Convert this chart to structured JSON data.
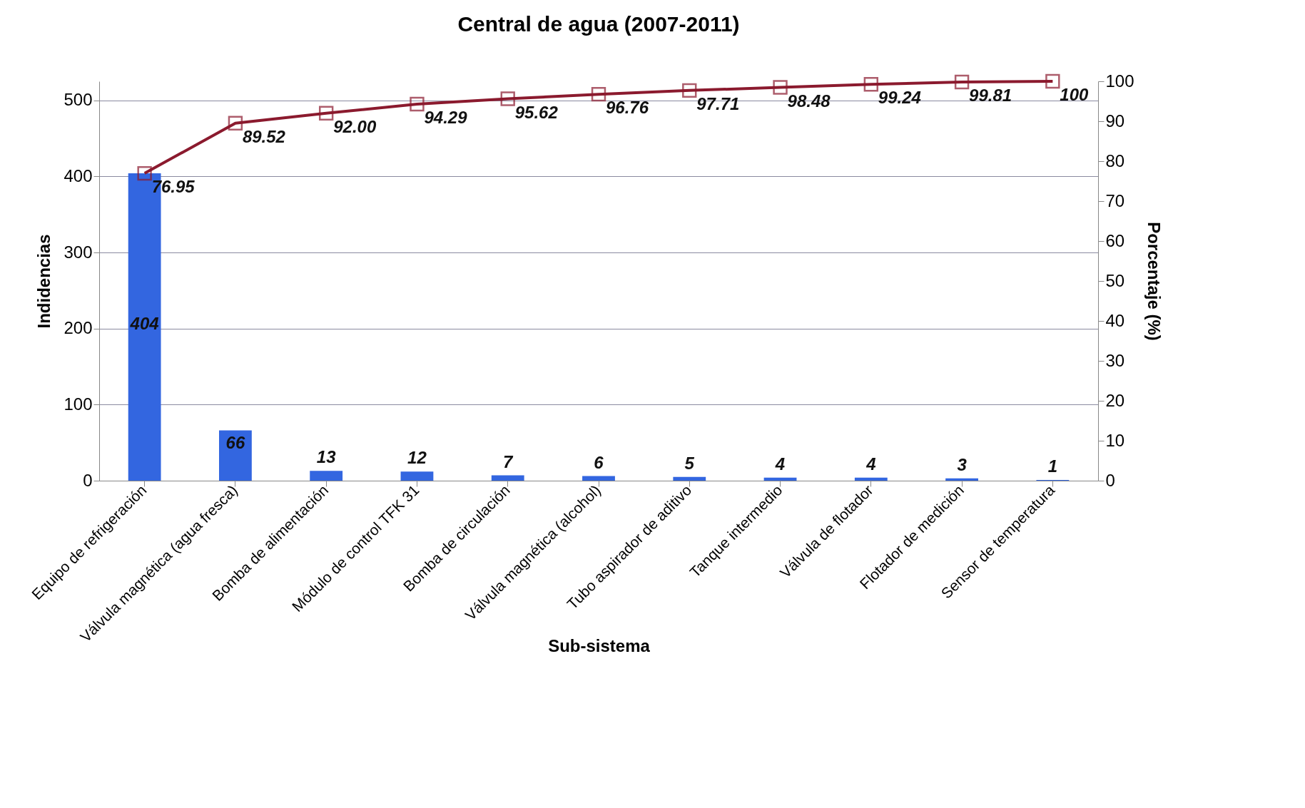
{
  "chart_data": {
    "type": "bar",
    "title": "Central de agua (2007-2011)",
    "xlabel": "Sub-sistema",
    "ylabel": "Indidencias",
    "y2label": "Porcentaje (%)",
    "categories": [
      "Equipo de refrigeración",
      "Válvula magnética (agua fresca)",
      "Bomba de alimentación",
      "Módulo de control TFK 31",
      "Bomba de circulación",
      "Válvula magnética (alcohol)",
      "Tubo aspirador de aditivo",
      "Tanque intermedio",
      "Válvula de flotador",
      "Flotador de medición",
      "Sensor de temperatura"
    ],
    "series": [
      {
        "color": "#3366e0",
        "values": [
          404,
          66,
          13,
          12,
          7,
          6,
          5,
          4,
          4,
          3,
          1
        ],
        "value_labels": [
          "404",
          "66",
          "13",
          "12",
          "7",
          "6",
          "5",
          "4",
          "4",
          "3",
          "1"
        ]
      },
      {
        "type": "line",
        "axis": "y2",
        "color": "#8b1a2e",
        "marker": "square",
        "values": [
          76.95,
          89.52,
          92.0,
          94.29,
          95.62,
          96.76,
          97.71,
          98.48,
          99.24,
          99.81,
          100
        ],
        "value_labels": [
          "76.95",
          "89.52",
          "92.00",
          "94.29",
          "95.62",
          "96.76",
          "97.71",
          "98.48",
          "99.24",
          "99.81",
          "100"
        ]
      }
    ],
    "ylim": [
      0,
      525
    ],
    "yticks": [
      0,
      100,
      200,
      300,
      400,
      500
    ],
    "y2lim": [
      0,
      100
    ],
    "y2ticks": [
      0,
      10,
      20,
      30,
      40,
      50,
      60,
      70,
      80,
      90,
      100
    ],
    "grid": "y"
  }
}
